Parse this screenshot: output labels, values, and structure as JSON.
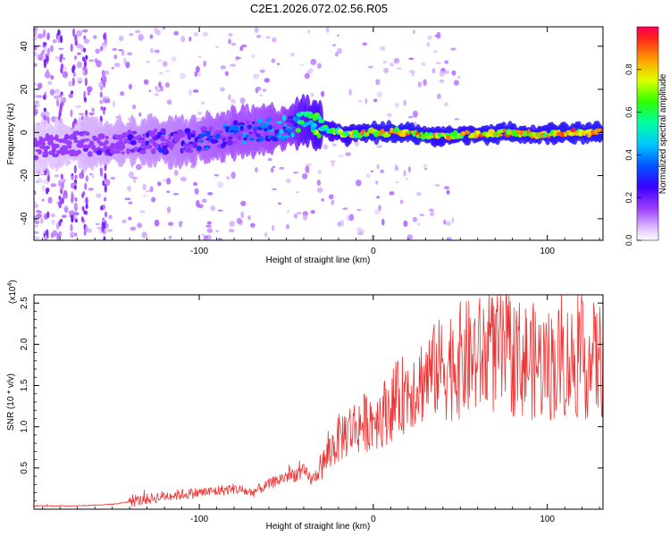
{
  "title": "C2E1.2026.072.02.56.R05",
  "chart_data": [
    {
      "type": "heatmap",
      "xlabel": "Height of straight line (km)",
      "ylabel": "Frequency (Hz)",
      "xlim": [
        -195,
        132
      ],
      "ylim": [
        -50,
        49
      ],
      "xticks": [
        -100,
        0,
        100
      ],
      "yticks": [
        -40,
        -20,
        0,
        20,
        40
      ],
      "colorbar": {
        "label": "Normalized spectral amplitude",
        "range": [
          0,
          1
        ],
        "ticks": [
          "0.0",
          "0.2",
          "0.4",
          "0.6",
          "0.8"
        ],
        "tick_values": [
          0,
          0.2,
          0.4,
          0.6,
          0.8
        ]
      },
      "ridge": {
        "x": [
          -195,
          -170,
          -150,
          -130,
          -110,
          -95,
          -80,
          -65,
          -50,
          -40,
          -35,
          -25,
          -15,
          -5,
          5,
          20,
          35,
          55,
          75,
          95,
          110,
          132
        ],
        "y": [
          -7,
          -5,
          -5,
          -4,
          -4,
          -3,
          0,
          1,
          2,
          5,
          4,
          1,
          -1,
          0,
          0,
          0,
          -2,
          -1,
          0,
          -1,
          0,
          0
        ],
        "amplitude": [
          0.15,
          0.2,
          0.25,
          0.3,
          0.35,
          0.4,
          0.45,
          0.45,
          0.5,
          0.7,
          0.75,
          0.8,
          0.85,
          0.9,
          0.95,
          0.95,
          0.9,
          0.9,
          0.95,
          0.9,
          0.95,
          1.0
        ]
      }
    },
    {
      "type": "line",
      "xlabel": "Height of straight line (km)",
      "ylabel": "SNR (10 * v/v)",
      "scale_label": "(x10",
      "scale_exp": "4",
      "scale_close": ")",
      "xlim": [
        -195,
        132
      ],
      "ylim": [
        0,
        2.6
      ],
      "xticks": [
        -100,
        0,
        100
      ],
      "yticks": [
        0.5,
        1.0,
        1.5,
        2.0,
        2.5
      ],
      "ytick_labels": [
        "0.5",
        "1.0",
        "1.5",
        "2.0",
        "2.5"
      ],
      "line_color": "#ee3333",
      "envelope": {
        "x": [
          -195,
          -170,
          -150,
          -130,
          -120,
          -100,
          -90,
          -80,
          -70,
          -60,
          -50,
          -40,
          -35,
          -30,
          -25,
          -20,
          -15,
          -10,
          -5,
          0,
          5,
          10,
          15,
          20,
          30,
          40,
          50,
          60,
          70,
          80,
          90,
          100,
          110,
          120,
          132
        ],
        "y": [
          0.04,
          0.04,
          0.06,
          0.12,
          0.16,
          0.2,
          0.22,
          0.25,
          0.2,
          0.3,
          0.4,
          0.45,
          0.35,
          0.5,
          0.7,
          0.85,
          0.95,
          1.0,
          1.05,
          1.1,
          1.15,
          1.25,
          1.35,
          1.45,
          1.6,
          1.75,
          1.8,
          1.85,
          1.9,
          1.85,
          1.8,
          1.75,
          1.8,
          1.8,
          1.8
        ]
      }
    }
  ]
}
